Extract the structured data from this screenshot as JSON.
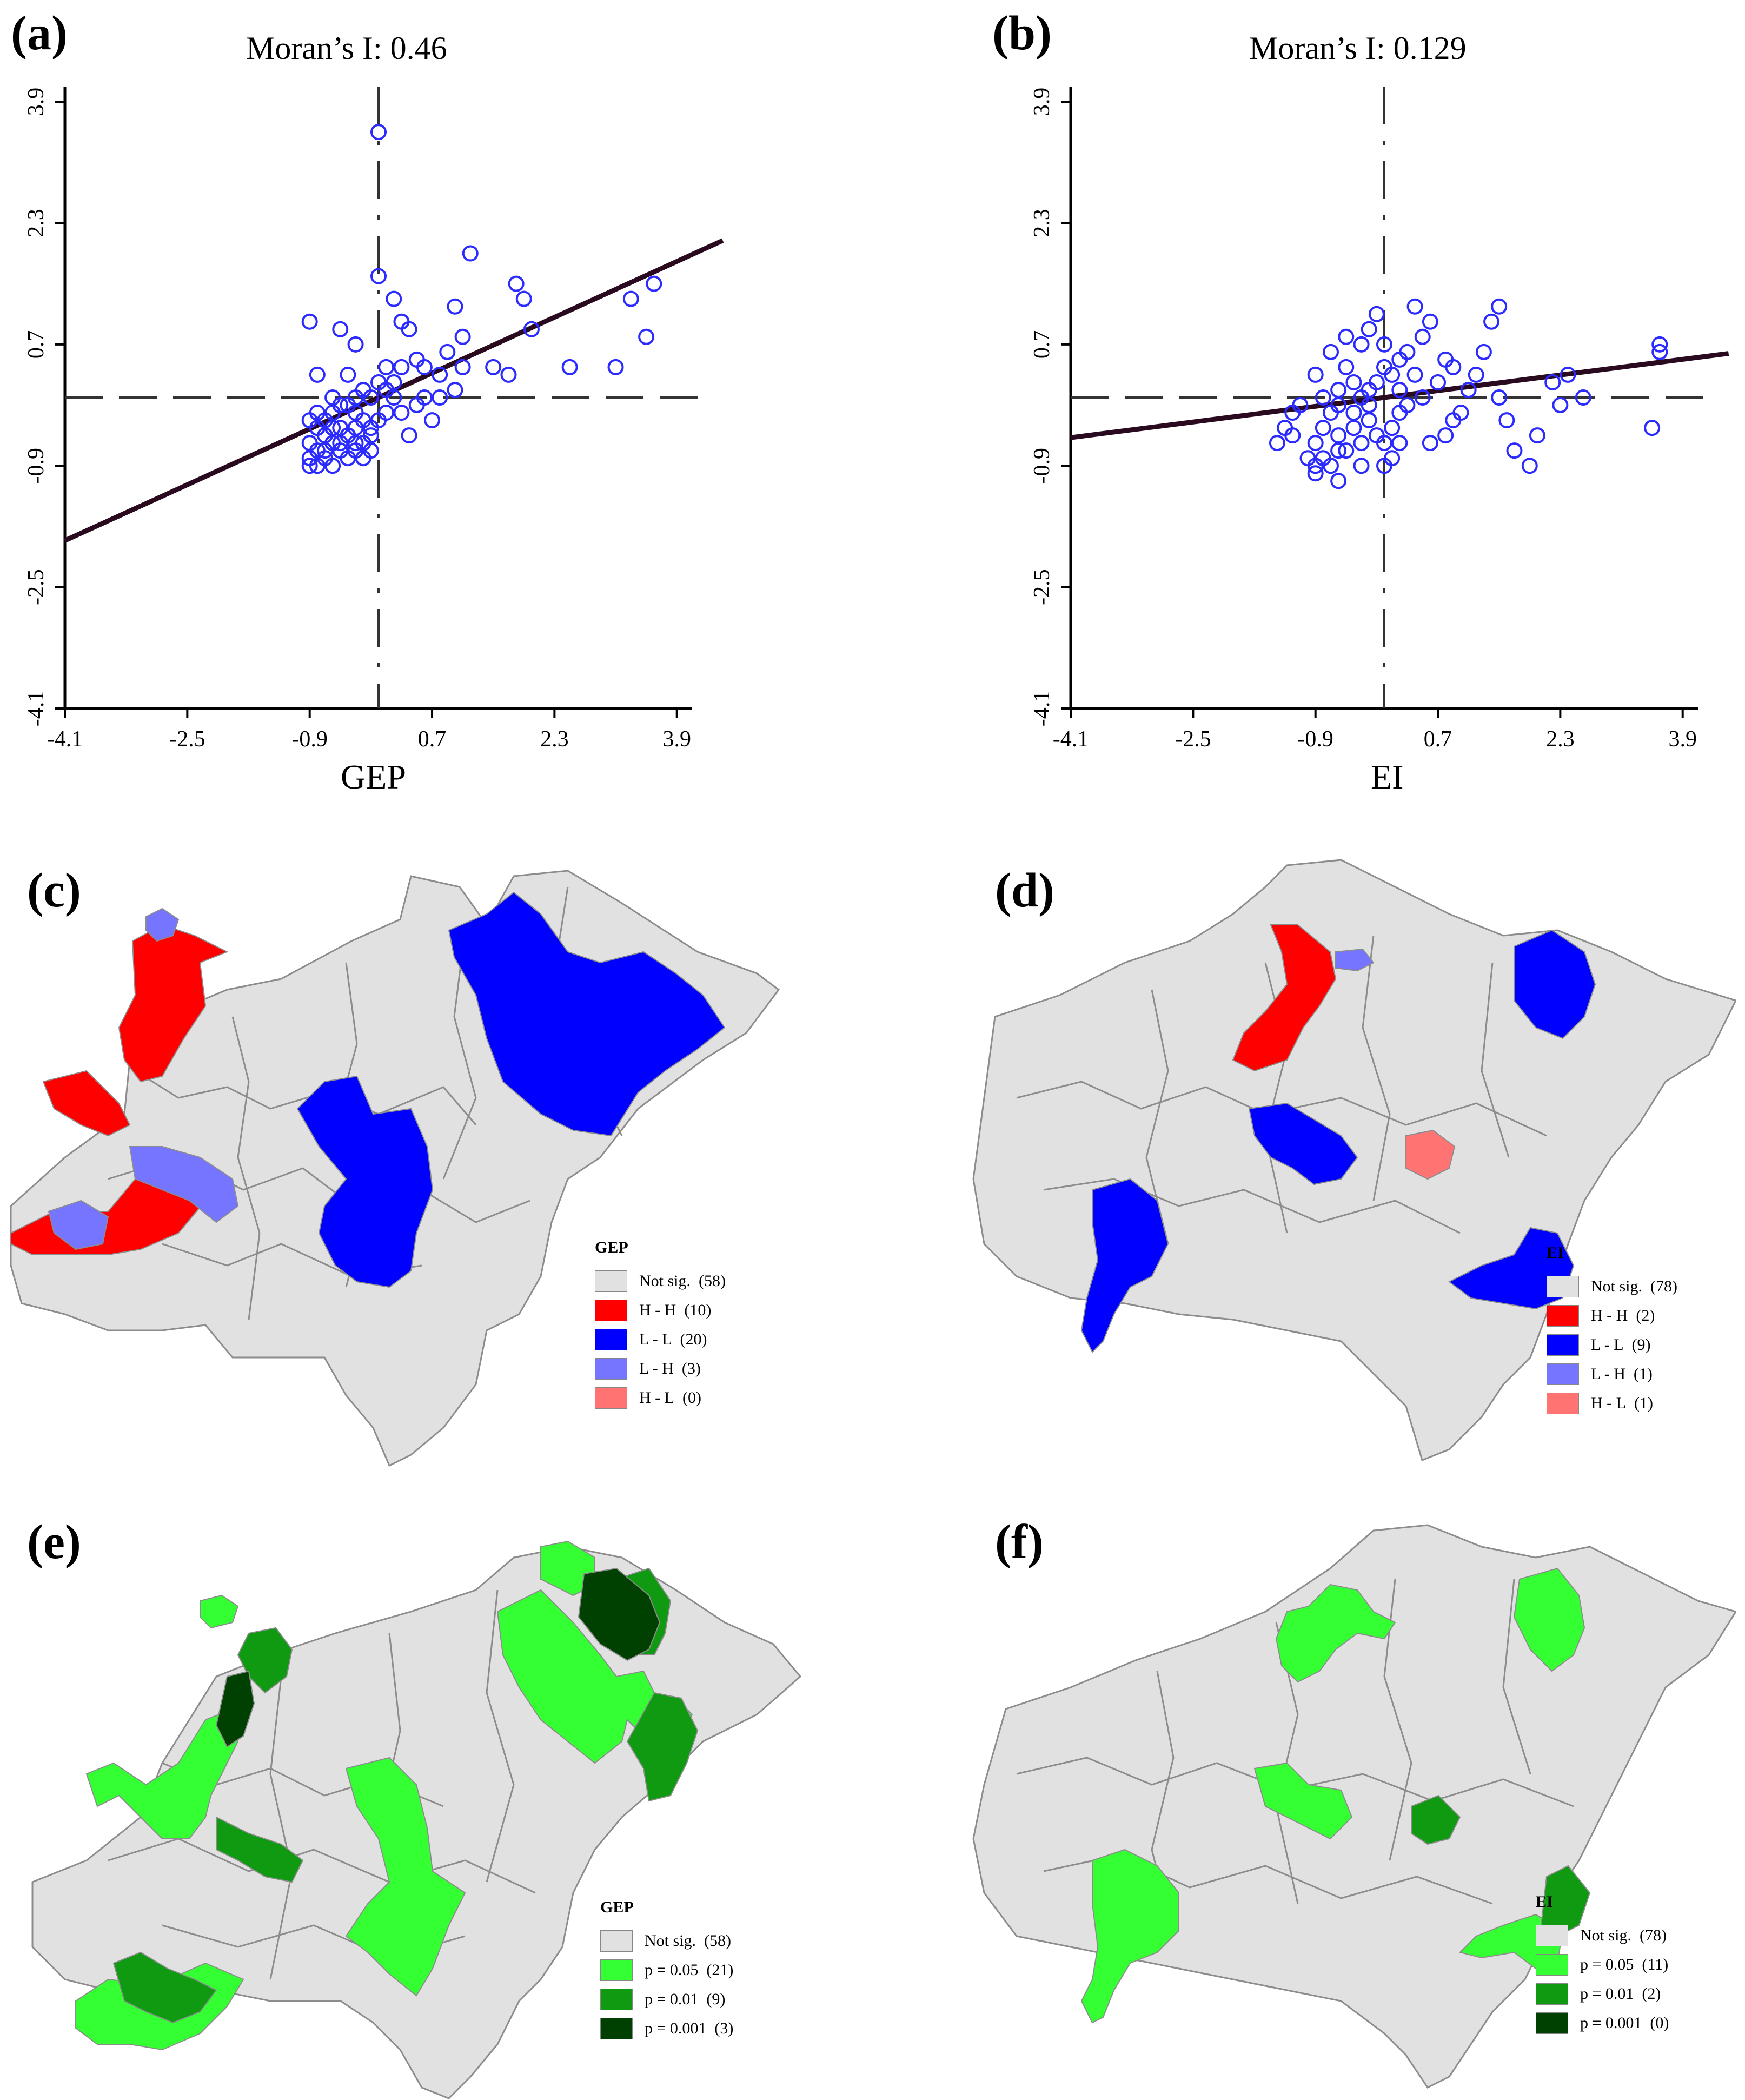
{
  "panels": {
    "a": {
      "label": "(a)",
      "title": "Moran’s I: 0.46",
      "xlabel": "GEP"
    },
    "b": {
      "label": "(b)",
      "title": "Moran’s I: 0.129",
      "xlabel": "EI"
    },
    "c": {
      "label": "(c)"
    },
    "d": {
      "label": "(d)"
    },
    "e": {
      "label": "(e)"
    },
    "f": {
      "label": "(f)"
    }
  },
  "chart_data": [
    {
      "type": "scatter",
      "panel": "a",
      "title": "Moran’s I: 0.46",
      "xlabel": "GEP",
      "ylabel": "",
      "xlim": [
        -4.1,
        4.1
      ],
      "ylim": [
        -4.1,
        4.1
      ],
      "xticks": [
        "-4.1",
        "-2.5",
        "-0.9",
        "0.7",
        "2.3",
        "3.9"
      ],
      "yticks": [
        "-4.1",
        "-2.5",
        "-0.9",
        "0.7",
        "2.3",
        "3.9"
      ],
      "slope": 0.46,
      "points": [
        [
          -0.9,
          1.0
        ],
        [
          -0.5,
          0.9
        ],
        [
          -0.3,
          0.7
        ],
        [
          -0.8,
          0.3
        ],
        [
          -0.4,
          0.3
        ],
        [
          -0.6,
          0.0
        ],
        [
          -0.5,
          -0.1
        ],
        [
          -0.4,
          -0.1
        ],
        [
          -0.3,
          -0.2
        ],
        [
          -0.2,
          0.1
        ],
        [
          -0.1,
          0.0
        ],
        [
          0.0,
          -0.3
        ],
        [
          -0.1,
          -0.5
        ],
        [
          -0.2,
          -0.6
        ],
        [
          -0.3,
          -0.7
        ],
        [
          -0.4,
          -0.8
        ],
        [
          -0.5,
          -0.7
        ],
        [
          -0.6,
          -0.6
        ],
        [
          -0.7,
          -0.5
        ],
        [
          -0.8,
          -0.4
        ],
        [
          -0.9,
          -0.3
        ],
        [
          -0.9,
          -0.6
        ],
        [
          -0.9,
          -0.8
        ],
        [
          -0.8,
          -0.9
        ],
        [
          -0.7,
          -0.8
        ],
        [
          -0.6,
          -0.9
        ],
        [
          -0.5,
          -0.6
        ],
        [
          -0.4,
          -0.5
        ],
        [
          -0.3,
          -0.4
        ],
        [
          -0.2,
          -0.3
        ],
        [
          -0.1,
          -0.4
        ],
        [
          0.1,
          -0.2
        ],
        [
          -0.8,
          -0.2
        ],
        [
          -0.7,
          -0.3
        ],
        [
          -0.6,
          -0.4
        ],
        [
          -0.5,
          -0.4
        ],
        [
          -0.3,
          -0.6
        ],
        [
          -0.2,
          -0.8
        ],
        [
          -0.1,
          -0.7
        ],
        [
          -0.7,
          -0.7
        ],
        [
          -0.9,
          -0.9
        ],
        [
          -0.8,
          -0.7
        ],
        [
          0.0,
          3.5
        ],
        [
          0.0,
          1.6
        ],
        [
          0.2,
          1.3
        ],
        [
          0.3,
          1.0
        ],
        [
          0.4,
          0.9
        ],
        [
          0.5,
          0.5
        ],
        [
          0.2,
          0.2
        ],
        [
          0.1,
          0.1
        ],
        [
          0.3,
          0.4
        ],
        [
          0.5,
          -0.1
        ],
        [
          0.6,
          0.0
        ],
        [
          0.4,
          -0.5
        ],
        [
          0.7,
          -0.3
        ],
        [
          0.8,
          0.0
        ],
        [
          1.0,
          0.1
        ],
        [
          1.1,
          0.4
        ],
        [
          0.8,
          0.3
        ],
        [
          1.0,
          1.2
        ],
        [
          1.2,
          1.9
        ],
        [
          1.5,
          0.4
        ],
        [
          1.7,
          0.3
        ],
        [
          1.8,
          1.5
        ],
        [
          1.9,
          1.3
        ],
        [
          2.0,
          0.9
        ],
        [
          2.5,
          0.4
        ],
        [
          3.1,
          0.4
        ],
        [
          3.3,
          1.3
        ],
        [
          3.6,
          1.5
        ],
        [
          3.5,
          0.8
        ],
        [
          0.3,
          -0.2
        ],
        [
          0.2,
          0.0
        ],
        [
          0.6,
          0.4
        ],
        [
          1.1,
          0.8
        ],
        [
          -0.3,
          0.0
        ],
        [
          -0.6,
          -0.2
        ],
        [
          0.1,
          0.4
        ],
        [
          0.9,
          0.6
        ],
        [
          0.0,
          0.2
        ]
      ]
    },
    {
      "type": "scatter",
      "panel": "b",
      "title": "Moran’s I: 0.129",
      "xlabel": "EI",
      "ylabel": "",
      "xlim": [
        -4.1,
        4.1
      ],
      "ylim": [
        -4.1,
        4.1
      ],
      "xticks": [
        "-4.1",
        "-2.5",
        "-0.9",
        "0.7",
        "2.3",
        "3.9"
      ],
      "yticks": [
        "-4.1",
        "-2.5",
        "-0.9",
        "0.7",
        "2.3",
        "3.9"
      ],
      "slope": 0.129,
      "points": [
        [
          -0.9,
          -0.6
        ],
        [
          -0.8,
          -0.4
        ],
        [
          -0.7,
          -0.2
        ],
        [
          -0.6,
          -0.5
        ],
        [
          -0.5,
          -0.7
        ],
        [
          -0.4,
          -0.4
        ],
        [
          -0.3,
          -0.6
        ],
        [
          -0.2,
          -0.3
        ],
        [
          -0.1,
          -0.5
        ],
        [
          0.0,
          -0.6
        ],
        [
          0.1,
          -0.4
        ],
        [
          0.2,
          -0.2
        ],
        [
          -1.3,
          -0.4
        ],
        [
          -1.4,
          -0.6
        ],
        [
          -1.2,
          -0.2
        ],
        [
          -1.1,
          -0.1
        ],
        [
          -1.0,
          -0.8
        ],
        [
          -0.9,
          -1.0
        ],
        [
          -0.8,
          -0.8
        ],
        [
          -0.7,
          -0.9
        ],
        [
          -0.6,
          -0.7
        ],
        [
          -0.8,
          0.0
        ],
        [
          -0.6,
          0.1
        ],
        [
          -0.4,
          0.2
        ],
        [
          -0.3,
          0.0
        ],
        [
          -0.2,
          -0.1
        ],
        [
          -0.1,
          0.2
        ],
        [
          0.0,
          0.4
        ],
        [
          0.1,
          0.3
        ],
        [
          -0.5,
          0.4
        ],
        [
          -0.7,
          0.6
        ],
        [
          -0.5,
          0.8
        ],
        [
          -0.3,
          0.7
        ],
        [
          -0.2,
          0.9
        ],
        [
          -0.1,
          1.1
        ],
        [
          0.0,
          0.7
        ],
        [
          -0.9,
          0.3
        ],
        [
          -0.6,
          -0.1
        ],
        [
          -0.4,
          -0.2
        ],
        [
          -0.2,
          0.1
        ],
        [
          0.2,
          0.1
        ],
        [
          0.3,
          -0.1
        ],
        [
          0.5,
          0.0
        ],
        [
          0.7,
          0.2
        ],
        [
          0.8,
          0.5
        ],
        [
          0.9,
          0.4
        ],
        [
          1.0,
          -0.2
        ],
        [
          0.3,
          0.6
        ],
        [
          0.5,
          0.8
        ],
        [
          0.6,
          1.0
        ],
        [
          0.4,
          1.2
        ],
        [
          0.2,
          -0.6
        ],
        [
          0.1,
          -0.8
        ],
        [
          0.0,
          -0.9
        ],
        [
          0.6,
          -0.6
        ],
        [
          0.8,
          -0.5
        ],
        [
          1.1,
          0.1
        ],
        [
          1.2,
          0.3
        ],
        [
          1.3,
          0.6
        ],
        [
          1.4,
          1.0
        ],
        [
          1.5,
          1.2
        ],
        [
          1.5,
          0.0
        ],
        [
          1.6,
          -0.3
        ],
        [
          1.7,
          -0.7
        ],
        [
          1.9,
          -0.9
        ],
        [
          2.0,
          -0.5
        ],
        [
          2.2,
          0.2
        ],
        [
          2.3,
          -0.1
        ],
        [
          2.4,
          0.3
        ],
        [
          3.5,
          -0.4
        ],
        [
          3.6,
          0.7
        ],
        [
          3.6,
          0.6
        ],
        [
          2.6,
          0.0
        ],
        [
          0.9,
          -0.3
        ],
        [
          0.4,
          0.3
        ],
        [
          -0.3,
          -0.9
        ],
        [
          -0.9,
          -0.9
        ],
        [
          -1.2,
          -0.5
        ],
        [
          -0.6,
          -1.1
        ],
        [
          0.2,
          0.5
        ]
      ]
    }
  ],
  "maps": {
    "c": {
      "legend_title": "GEP",
      "items": [
        {
          "label": "Not sig.",
          "count": "(58)",
          "color": "#e1e1e1"
        },
        {
          "label": "H - H",
          "count": "(10)",
          "color": "#ff0000"
        },
        {
          "label": "L - L",
          "count": "(20)",
          "color": "#0000ff"
        },
        {
          "label": "L - H",
          "count": "(3)",
          "color": "#7575ff"
        },
        {
          "label": "H - L",
          "count": "(0)",
          "color": "#ff7373"
        }
      ]
    },
    "d": {
      "legend_title": "EI",
      "items": [
        {
          "label": "Not sig.",
          "count": "(78)",
          "color": "#e1e1e1"
        },
        {
          "label": "H - H",
          "count": "(2)",
          "color": "#ff0000"
        },
        {
          "label": "L - L",
          "count": "(9)",
          "color": "#0000ff"
        },
        {
          "label": "L - H",
          "count": "(1)",
          "color": "#7575ff"
        },
        {
          "label": "H - L",
          "count": "(1)",
          "color": "#ff7373"
        }
      ]
    },
    "e": {
      "legend_title": "GEP",
      "items": [
        {
          "label": "Not sig.",
          "count": "(58)",
          "color": "#e1e1e1"
        },
        {
          "label": "p = 0.05",
          "count": "(21)",
          "color": "#33ff33"
        },
        {
          "label": "p = 0.01",
          "count": "(9)",
          "color": "#0f9a12"
        },
        {
          "label": "p = 0.001",
          "count": "(3)",
          "color": "#004000"
        }
      ]
    },
    "f": {
      "legend_title": "EI",
      "items": [
        {
          "label": "Not sig.",
          "count": "(78)",
          "color": "#e1e1e1"
        },
        {
          "label": "p = 0.05",
          "count": "(11)",
          "color": "#33ff33"
        },
        {
          "label": "p = 0.01",
          "count": "(2)",
          "color": "#0f9a12"
        },
        {
          "label": "p = 0.001",
          "count": "(0)",
          "color": "#004000"
        }
      ]
    }
  }
}
